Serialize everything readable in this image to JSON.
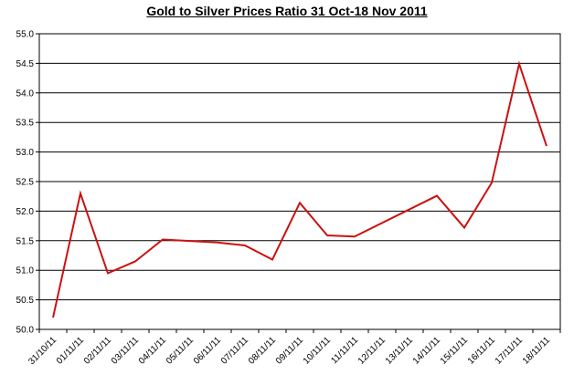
{
  "chart_data": {
    "type": "line",
    "title": "Gold to Silver Prices Ratio 31 Oct-18 Nov 2011",
    "xlabel": "",
    "ylabel": "",
    "ylim": [
      50.0,
      55.0
    ],
    "ytick_step": 0.5,
    "ytick_labels": [
      "50.0",
      "50.5",
      "51.0",
      "51.5",
      "52.0",
      "52.5",
      "53.0",
      "53.5",
      "54.0",
      "54.5",
      "55.0"
    ],
    "categories": [
      "31/10/11",
      "01/11/11",
      "02/11/11",
      "03/11/11",
      "04/11/11",
      "05/11/11",
      "06/11/11",
      "07/11/11",
      "08/11/11",
      "09/11/11",
      "10/11/11",
      "11/11/11",
      "12/11/11",
      "13/11/11",
      "14/11/11",
      "15/11/11",
      "16/11/11",
      "17/11/11",
      "18/11/11"
    ],
    "tick_labels": [
      "31/10/11",
      "01/11/11",
      "02/11/11",
      "03/11/11",
      "04/11/11",
      "05/11/11",
      "06/11/11",
      "07/11/11",
      "08/11/11",
      "09/11/11",
      "10/11/11",
      "11/11/11",
      "12/11/11",
      "13/11/11",
      "14/11/11",
      "15/11/11",
      "16/11/11",
      "17/11/11",
      "18/11/11"
    ],
    "series": [
      {
        "name": "",
        "points": [
          {
            "x": "31/10/11",
            "y": 50.2
          },
          {
            "x": "01/11/11",
            "y": 52.3
          },
          {
            "x": "02/11/11",
            "y": 50.95
          },
          {
            "x": "03/11/11",
            "y": 51.15
          },
          {
            "x": "04/11/11",
            "y": 51.52
          },
          {
            "x": "06/11/11",
            "y": 51.47
          },
          {
            "x": "07/11/11",
            "y": 51.42
          },
          {
            "x": "08/11/11",
            "y": 51.18
          },
          {
            "x": "09/11/11",
            "y": 52.14
          },
          {
            "x": "10/11/11",
            "y": 51.59
          },
          {
            "x": "11/11/11",
            "y": 51.57
          },
          {
            "x": "14/11/11",
            "y": 52.26
          },
          {
            "x": "15/11/11",
            "y": 51.72
          },
          {
            "x": "16/11/11",
            "y": 52.48
          },
          {
            "x": "17/11/11",
            "y": 54.49
          },
          {
            "x": "18/11/11",
            "y": 53.1
          }
        ]
      }
    ],
    "grid": true,
    "legend": "none",
    "colors": {
      "line": "#cc1111",
      "grid": "#000000",
      "axis": "#000000"
    }
  }
}
